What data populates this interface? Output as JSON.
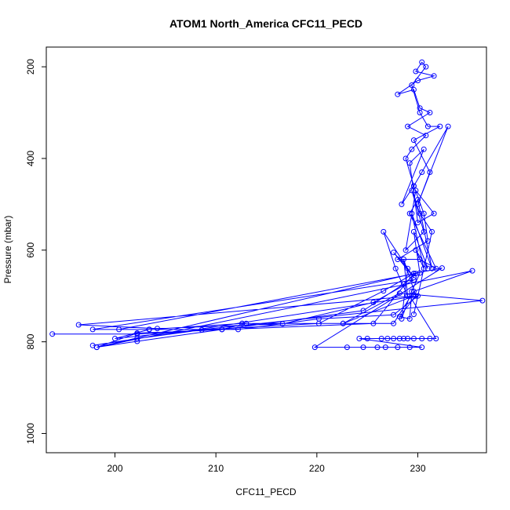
{
  "chart_data": {
    "type": "line",
    "title": "ATOM1 North_America CFC11_PECD",
    "xlabel": "CFC11_PECD",
    "ylabel": "Pressure (mbar)",
    "xlim": [
      193.2,
      236.8
    ],
    "ylim": [
      1042,
      157
    ],
    "y_reversed": true,
    "xticks": [
      200,
      210,
      220,
      230
    ],
    "yticks": [
      200,
      400,
      600,
      800,
      1000
    ],
    "grid": false,
    "legend": "none",
    "series_color": "#0000ff",
    "x": [
      193.8,
      202.2,
      210.6,
      213.0,
      222.6,
      229.6,
      196.4,
      204.2,
      216.6,
      225.6,
      229.6,
      197.8,
      203.4,
      212.2,
      220.2,
      227.6,
      230.0,
      197.8,
      202.2,
      208.6,
      220.2,
      226.6,
      229.6,
      198.2,
      202.2,
      210.6,
      224.6,
      228.6,
      229.8,
      200.4,
      203.4,
      212.6,
      222.6,
      228.2,
      236.4,
      200.0,
      203.4,
      212.6,
      227.6,
      229.6,
      235.4,
      198.2,
      202.2,
      225.6,
      229.6,
      232.4,
      219.8,
      223.0,
      224.6,
      226.0,
      226.8,
      228.0,
      229.2,
      230.4,
      224.2,
      225.0,
      226.4,
      227.0,
      227.6,
      228.2,
      228.6,
      229.0,
      229.6,
      230.4,
      231.2,
      231.8,
      229.2,
      228.4,
      229.0,
      227.6,
      229.6,
      226.6,
      227.8,
      229.0,
      228.6,
      229.8,
      228.2,
      229.2,
      229.4,
      230.2,
      229.6,
      231.0,
      229.8,
      230.6,
      229.4,
      231.4,
      230.0,
      229.2,
      231.8,
      230.2,
      228.0,
      231.0,
      230.6,
      229.6,
      228.8,
      229.4,
      230.8,
      229.0,
      231.2,
      230.2,
      229.6,
      228.0,
      230.0,
      231.6,
      229.8,
      230.4,
      230.8,
      229.4,
      230.2,
      231.0,
      232.2,
      229.6,
      231.2,
      230.0,
      233.0,
      230.4,
      229.6,
      228.4,
      230.6,
      229.2,
      230.0,
      231.6,
      229.8,
      228.8,
      230.6,
      229.4,
      230.2,
      231.4,
      229.6
    ],
    "y": [
      783,
      783,
      773,
      760,
      760,
      700,
      763,
      771,
      761,
      714,
      665,
      773,
      773,
      773,
      750,
      741,
      700,
      808,
      793,
      774,
      760,
      689,
      651,
      812,
      799,
      773,
      732,
      674,
      651,
      773,
      773,
      760,
      760,
      694,
      710,
      793,
      773,
      760,
      760,
      690,
      645,
      812,
      781,
      760,
      651,
      639,
      812,
      812,
      812,
      812,
      812,
      812,
      812,
      812,
      793,
      793,
      793,
      793,
      793,
      793,
      793,
      793,
      793,
      793,
      793,
      793,
      700,
      750,
      640,
      605,
      660,
      560,
      640,
      700,
      620,
      700,
      745,
      750,
      690,
      650,
      560,
      640,
      600,
      640,
      520,
      640,
      490,
      520,
      640,
      620,
      620,
      580,
      520,
      460,
      400,
      380,
      350,
      330,
      300,
      290,
      250,
      260,
      230,
      220,
      210,
      190,
      200,
      240,
      300,
      330,
      330,
      360,
      430,
      500,
      330,
      430,
      460,
      500,
      380,
      410,
      540,
      520,
      470,
      600,
      560,
      470,
      520,
      560,
      740
    ]
  }
}
